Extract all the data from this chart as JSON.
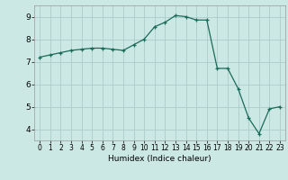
{
  "title": "",
  "xlabel": "Humidex (Indice chaleur)",
  "ylabel": "",
  "bg_color": "#cce8e4",
  "grid_color": "#aacccc",
  "line_color": "#1a6b5a",
  "marker_color": "#1a6b5a",
  "ylim": [
    3.5,
    9.5
  ],
  "xlim": [
    -0.5,
    23.5
  ],
  "yticks": [
    4,
    5,
    6,
    7,
    8,
    9
  ],
  "xticks": [
    0,
    1,
    2,
    3,
    4,
    5,
    6,
    7,
    8,
    9,
    10,
    11,
    12,
    13,
    14,
    15,
    16,
    17,
    18,
    19,
    20,
    21,
    22,
    23
  ],
  "x": [
    0,
    1,
    2,
    3,
    4,
    5,
    6,
    7,
    8,
    9,
    10,
    11,
    12,
    13,
    14,
    15,
    16,
    17,
    18,
    19,
    20,
    21,
    22,
    23
  ],
  "y": [
    7.2,
    7.3,
    7.4,
    7.5,
    7.55,
    7.6,
    7.6,
    7.55,
    7.5,
    7.75,
    8.0,
    8.55,
    8.75,
    9.05,
    9.0,
    8.85,
    8.85,
    6.7,
    6.7,
    5.8,
    4.5,
    3.8,
    4.9,
    5.0
  ]
}
